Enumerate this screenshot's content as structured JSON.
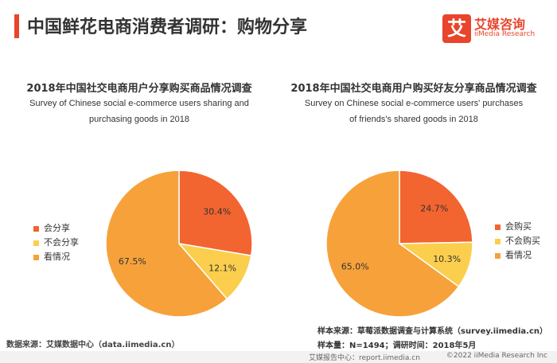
{
  "header": {
    "title": "中国鲜花电商消费者调研：购物分享",
    "logo_mark": "艾",
    "logo_cn": "艾媒咨询",
    "logo_en": "iiMedia Research"
  },
  "colors": {
    "accent": "#e8452c",
    "orange_red": "#f26430",
    "yellow": "#fbcf4d",
    "orange": "#f7a13b"
  },
  "chart_data": [
    {
      "type": "pie",
      "title": "2018年中国社交电商用户分享购买商品情况调查",
      "subtitle": "Survey of Chinese social e-commerce users sharing and purchasing goods in 2018",
      "categories": [
        "会分享",
        "不会分享",
        "看情况"
      ],
      "values": [
        30.4,
        12.1,
        67.5
      ],
      "labels": [
        "30.4%",
        "12.1%",
        "67.5%"
      ],
      "colors": [
        "#f26430",
        "#fbcf4d",
        "#f7a13b"
      ],
      "legend_position": "left"
    },
    {
      "type": "pie",
      "title": "2018年中国社交电商用户购买好友分享商品情况调查",
      "subtitle": "Survey on Chinese social e-commerce users' purchases of friends's shared goods in 2018",
      "categories": [
        "会购买",
        "不会购买",
        "看情况"
      ],
      "values": [
        24.7,
        10.3,
        65.0
      ],
      "labels": [
        "24.7%",
        "10.3%",
        "65.0%"
      ],
      "colors": [
        "#f26430",
        "#fbcf4d",
        "#f7a13b"
      ],
      "legend_position": "right"
    }
  ],
  "source": {
    "left": "数据来源：艾媒数据中心（data.iimedia.cn）",
    "sample_source": "样本来源：草莓派数据调查与计算系统（survey.iimedia.cn）",
    "sample_size": "样本量：N=1494；调研时间：2018年5月"
  },
  "footer": {
    "left": "艾媒报告中心：report.iimedia.cn",
    "right": "©2022 iiMedia Research Inc"
  }
}
